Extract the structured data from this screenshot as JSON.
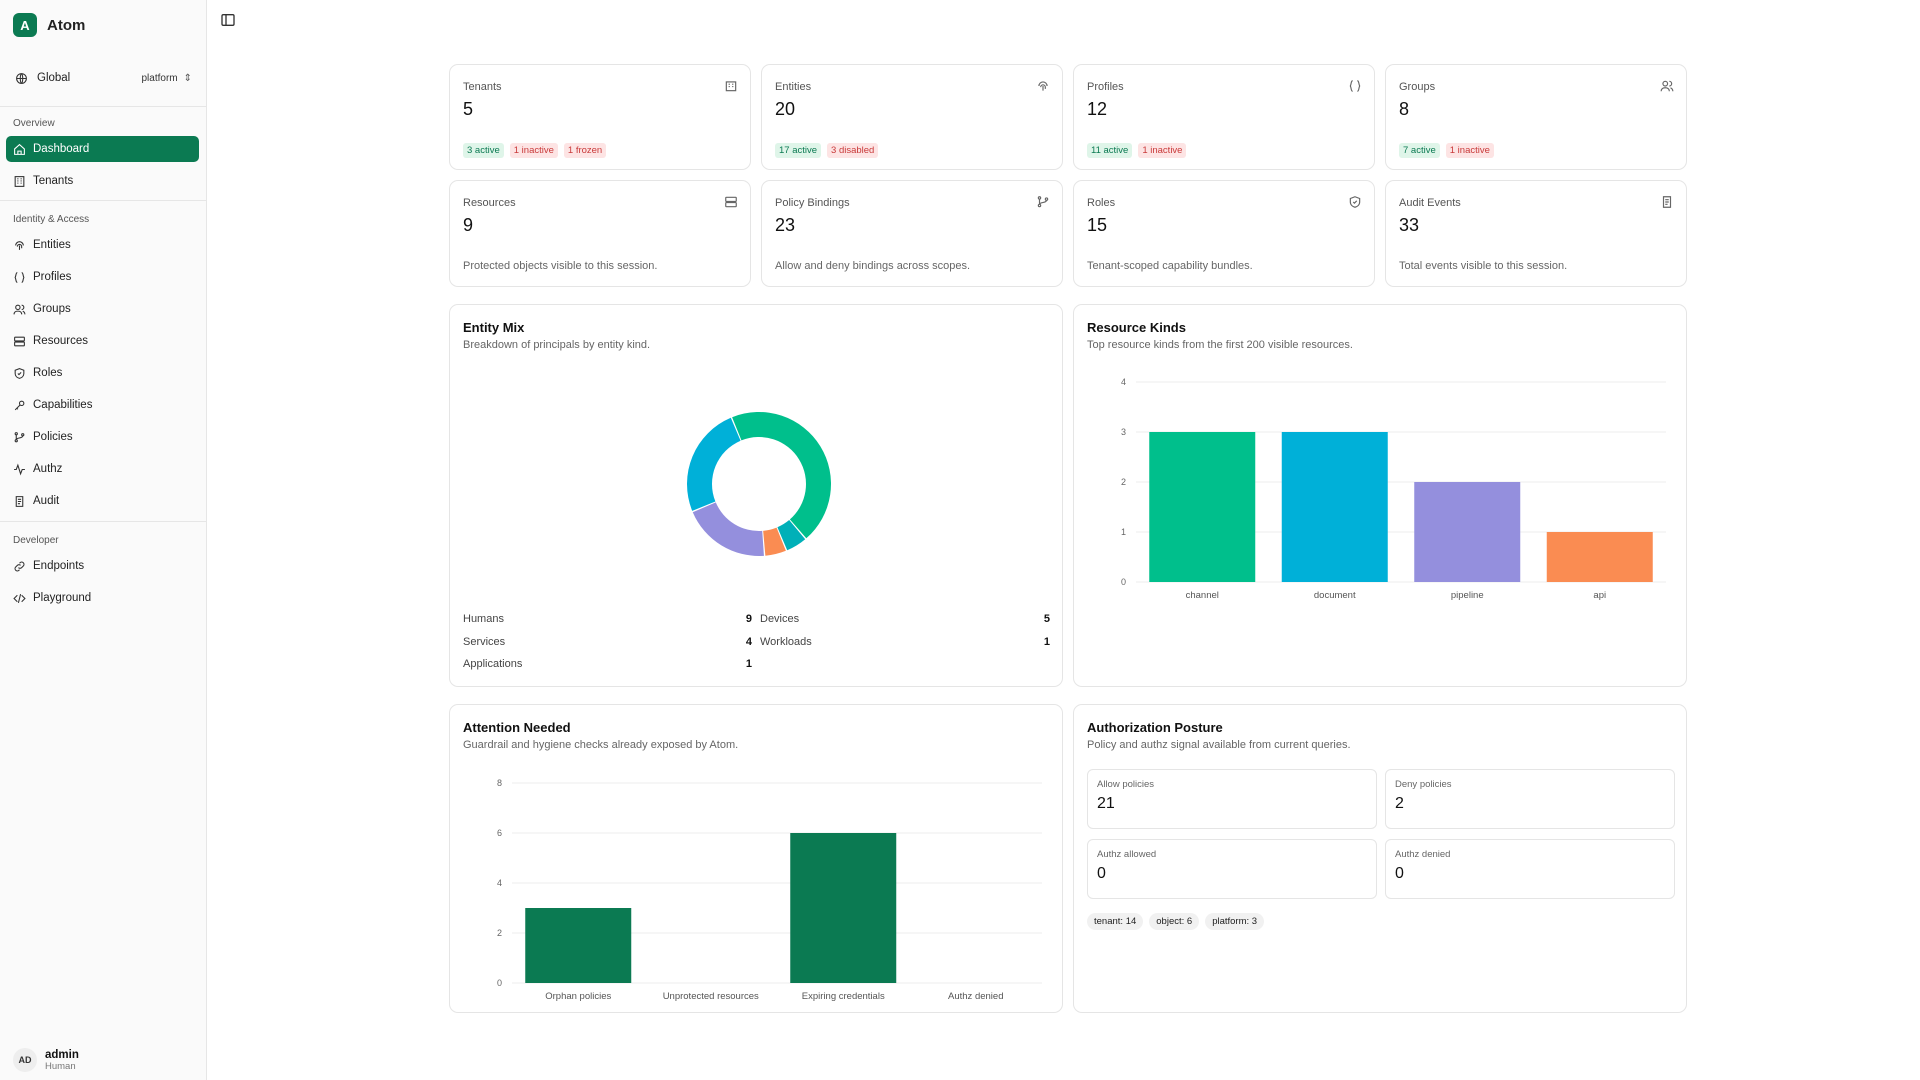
{
  "app": {
    "logo_letter": "A",
    "name": "Atom"
  },
  "scope": {
    "label": "Global",
    "env": "platform"
  },
  "sidebar": {
    "sections": [
      "Overview",
      "Identity & Access",
      "Developer"
    ],
    "items": [
      {
        "label": "Dashboard",
        "icon": "home-icon"
      },
      {
        "label": "Tenants",
        "icon": "building-icon"
      },
      {
        "label": "Entities",
        "icon": "fingerprint-icon"
      },
      {
        "label": "Profiles",
        "icon": "braces-icon"
      },
      {
        "label": "Groups",
        "icon": "users-icon"
      },
      {
        "label": "Resources",
        "icon": "server-icon"
      },
      {
        "label": "Roles",
        "icon": "shield-icon"
      },
      {
        "label": "Capabilities",
        "icon": "key-icon"
      },
      {
        "label": "Policies",
        "icon": "git-branch-icon"
      },
      {
        "label": "Authz",
        "icon": "activity-icon"
      },
      {
        "label": "Audit",
        "icon": "scroll-icon"
      },
      {
        "label": "Endpoints",
        "icon": "link-icon"
      },
      {
        "label": "Playground",
        "icon": "code-icon"
      }
    ]
  },
  "user": {
    "initials": "AD",
    "name": "admin",
    "role": "Human"
  },
  "stats": [
    {
      "label": "Tenants",
      "value": "5",
      "badges": [
        {
          "text": "3 active",
          "tone": "g"
        },
        {
          "text": "1 inactive",
          "tone": "r"
        },
        {
          "text": "1 frozen",
          "tone": "r"
        }
      ]
    },
    {
      "label": "Entities",
      "value": "20",
      "badges": [
        {
          "text": "17 active",
          "tone": "g"
        },
        {
          "text": "3 disabled",
          "tone": "r"
        }
      ]
    },
    {
      "label": "Profiles",
      "value": "12",
      "badges": [
        {
          "text": "11 active",
          "tone": "g"
        },
        {
          "text": "1 inactive",
          "tone": "r"
        }
      ]
    },
    {
      "label": "Groups",
      "value": "8",
      "badges": [
        {
          "text": "7 active",
          "tone": "g"
        },
        {
          "text": "1 inactive",
          "tone": "r"
        }
      ]
    },
    {
      "label": "Resources",
      "value": "9",
      "desc": "Protected objects visible to this session."
    },
    {
      "label": "Policy Bindings",
      "value": "23",
      "desc": "Allow and deny bindings across scopes."
    },
    {
      "label": "Roles",
      "value": "15",
      "desc": "Tenant-scoped capability bundles."
    },
    {
      "label": "Audit Events",
      "value": "33",
      "desc": "Total events visible to this session."
    }
  ],
  "entity_mix": {
    "title": "Entity Mix",
    "subtitle": "Breakdown of principals by entity kind.",
    "legend": [
      {
        "label": "Humans",
        "value": "9"
      },
      {
        "label": "Devices",
        "value": "5"
      },
      {
        "label": "Services",
        "value": "4"
      },
      {
        "label": "Workloads",
        "value": "1"
      },
      {
        "label": "Applications",
        "value": "1"
      }
    ]
  },
  "resource_kinds": {
    "title": "Resource Kinds",
    "subtitle": "Top resource kinds from the first 200 visible resources."
  },
  "attention": {
    "title": "Attention Needed",
    "subtitle": "Guardrail and hygiene checks already exposed by Atom."
  },
  "posture": {
    "title": "Authorization Posture",
    "subtitle": "Policy and authz signal available from current queries.",
    "metrics": [
      {
        "label": "Allow policies",
        "value": "21"
      },
      {
        "label": "Deny policies",
        "value": "2"
      },
      {
        "label": "Authz allowed",
        "value": "0"
      },
      {
        "label": "Authz denied",
        "value": "0"
      }
    ],
    "tags": [
      "tenant: 14",
      "object: 6",
      "platform: 3"
    ]
  },
  "chart_data": [
    {
      "type": "pie",
      "title": "Entity Mix",
      "categories": [
        "Humans",
        "Devices",
        "Services",
        "Workloads",
        "Applications"
      ],
      "values": [
        9,
        5,
        4,
        1,
        1
      ],
      "colors": [
        "#00bf8c",
        "#00b0d8",
        "#948fdd",
        "#fa8c52",
        "#00b0b8"
      ]
    },
    {
      "type": "bar",
      "title": "Resource Kinds",
      "categories": [
        "channel",
        "document",
        "pipeline",
        "api"
      ],
      "values": [
        3,
        3,
        2,
        1
      ],
      "ylim": [
        0,
        4
      ],
      "yticks": [
        0,
        1,
        2,
        3,
        4
      ],
      "colors": [
        "#00bf8c",
        "#00b0d8",
        "#948fdd",
        "#fa8c52"
      ]
    },
    {
      "type": "bar",
      "title": "Attention Needed",
      "categories": [
        "Orphan policies",
        "Unprotected resources",
        "Expiring credentials",
        "Authz denied"
      ],
      "values": [
        3,
        0,
        6,
        0
      ],
      "ylim": [
        0,
        8
      ],
      "yticks": [
        0,
        2,
        4,
        6,
        8
      ],
      "colors": [
        "#0b7a52",
        "#0b7a52",
        "#0b7a52",
        "#0b7a52"
      ]
    }
  ]
}
